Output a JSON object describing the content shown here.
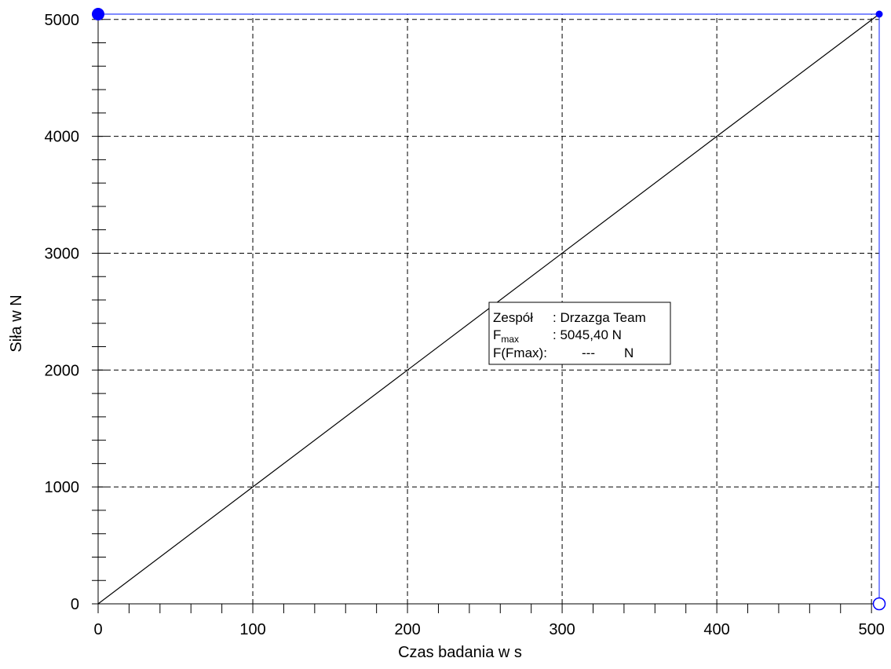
{
  "chart_data": {
    "type": "line",
    "xlabel": "Czas badania w s",
    "ylabel": "Siła w N",
    "xlim": [
      0,
      505
    ],
    "ylim": [
      0,
      5045.4
    ],
    "x_ticks": [
      0,
      100,
      200,
      300,
      400,
      500
    ],
    "x_tick_labels": [
      "0",
      "100",
      "200",
      "300",
      "400",
      "500"
    ],
    "y_ticks": [
      0,
      1000,
      2000,
      3000,
      4000,
      5000
    ],
    "y_tick_labels": [
      "0",
      "1000",
      "2000",
      "3000",
      "4000",
      "5000"
    ],
    "x_minor_step": 20,
    "y_minor_step": 200,
    "grid": true,
    "series": [
      {
        "x": [
          0,
          100,
          200,
          300,
          400,
          505
        ],
        "y": [
          0,
          1000,
          2000,
          3000,
          4000,
          5045.4
        ]
      }
    ],
    "markers": [
      {
        "x": 0,
        "y": 5045.4,
        "style": "filled-large"
      },
      {
        "x": 505,
        "y": 5045.4,
        "style": "filled-small"
      },
      {
        "x": 505,
        "y": 0,
        "style": "hollow"
      }
    ],
    "fmax_value": 5045.4,
    "end_time": 505
  },
  "info_box": {
    "row1_label": "Zespół",
    "row1_value": ": Drzazga Team",
    "row2_label_main": "F",
    "row2_label_sub": "max",
    "row2_value": ": 5045,40 N",
    "row3_label": "F(Fmax):",
    "row3_value": "---",
    "row3_unit": "N"
  },
  "colors": {
    "grid": "#000000",
    "line": "#000000",
    "marker": "#0000ff",
    "fmax_line": "#3344ff"
  }
}
